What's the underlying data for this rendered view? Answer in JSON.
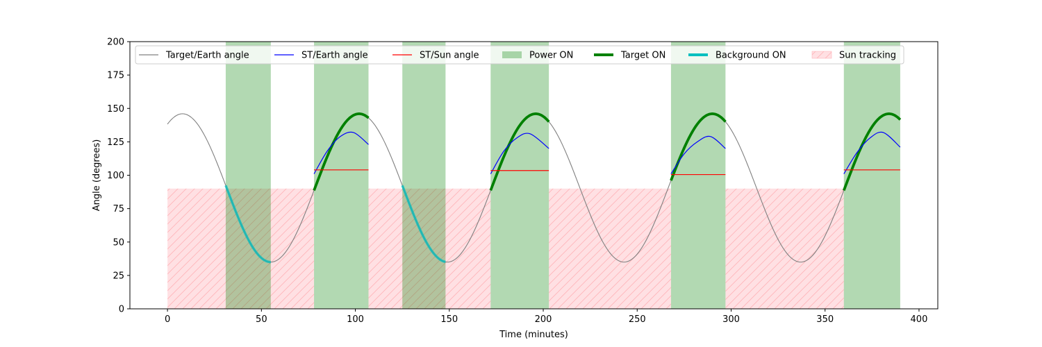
{
  "chart_data": {
    "type": "line",
    "xlabel": "Time (minutes)",
    "ylabel": "Angle (degrees)",
    "xlim": [
      -20,
      410
    ],
    "ylim": [
      0,
      200
    ],
    "xticks": [
      0,
      50,
      100,
      150,
      200,
      250,
      300,
      350,
      400
    ],
    "yticks": [
      0,
      25,
      50,
      75,
      100,
      125,
      150,
      175,
      200
    ],
    "grid": false,
    "legend_position": "top",
    "legend": [
      {
        "label": "Target/Earth angle",
        "kind": "line",
        "color": "#808080"
      },
      {
        "label": "ST/Earth angle",
        "kind": "line",
        "color": "#0000ff"
      },
      {
        "label": "ST/Sun angle",
        "kind": "line",
        "color": "#ff0000"
      },
      {
        "label": "Power ON",
        "kind": "patch",
        "color": "#008000"
      },
      {
        "label": "Target ON",
        "kind": "thickline",
        "color": "#008000"
      },
      {
        "label": "Background ON",
        "kind": "thickline",
        "color": "#00bfbf"
      },
      {
        "label": "Sun tracking",
        "kind": "hatch",
        "color": "#ffb3b8"
      }
    ],
    "target_earth_angle": {
      "name": "Target/Earth angle",
      "x_range": [
        0,
        390
      ],
      "mean": 90.5,
      "amplitude": 55.5,
      "period_minutes": 94,
      "peak_at_minutes": 8
    },
    "power_on_intervals": [
      [
        31,
        55
      ],
      [
        78,
        107
      ],
      [
        125,
        148
      ],
      [
        172,
        203
      ],
      [
        268,
        297
      ],
      [
        360,
        390
      ]
    ],
    "sun_tracking_intervals": [
      [
        0,
        78
      ],
      [
        107,
        172
      ],
      [
        203,
        268
      ],
      [
        297,
        360
      ]
    ],
    "sun_tracking_level": 90,
    "target_on_intervals": [
      [
        78,
        107
      ],
      [
        172,
        203
      ],
      [
        268,
        297
      ],
      [
        360,
        390
      ]
    ],
    "background_on_intervals": [
      [
        31,
        55
      ],
      [
        125,
        148
      ]
    ],
    "st_earth_segments": [
      {
        "x": [
          78,
          85,
          92,
          99,
          107
        ],
        "y": [
          101,
          118,
          129,
          132,
          123
        ]
      },
      {
        "x": [
          172,
          179,
          186,
          193,
          203
        ],
        "y": [
          101,
          118,
          128,
          131,
          120
        ]
      },
      {
        "x": [
          268,
          275,
          282,
          289,
          297
        ],
        "y": [
          101,
          116,
          125,
          129,
          120
        ]
      },
      {
        "x": [
          360,
          367,
          374,
          381,
          390
        ],
        "y": [
          101,
          117,
          128,
          132,
          121
        ]
      }
    ],
    "st_sun_segments": [
      {
        "x": [
          78,
          107
        ],
        "y": [
          104,
          104
        ]
      },
      {
        "x": [
          172,
          203
        ],
        "y": [
          103.5,
          103.5
        ]
      },
      {
        "x": [
          268,
          297
        ],
        "y": [
          100.5,
          100.5
        ]
      },
      {
        "x": [
          360,
          390
        ],
        "y": [
          104,
          104
        ]
      }
    ]
  }
}
